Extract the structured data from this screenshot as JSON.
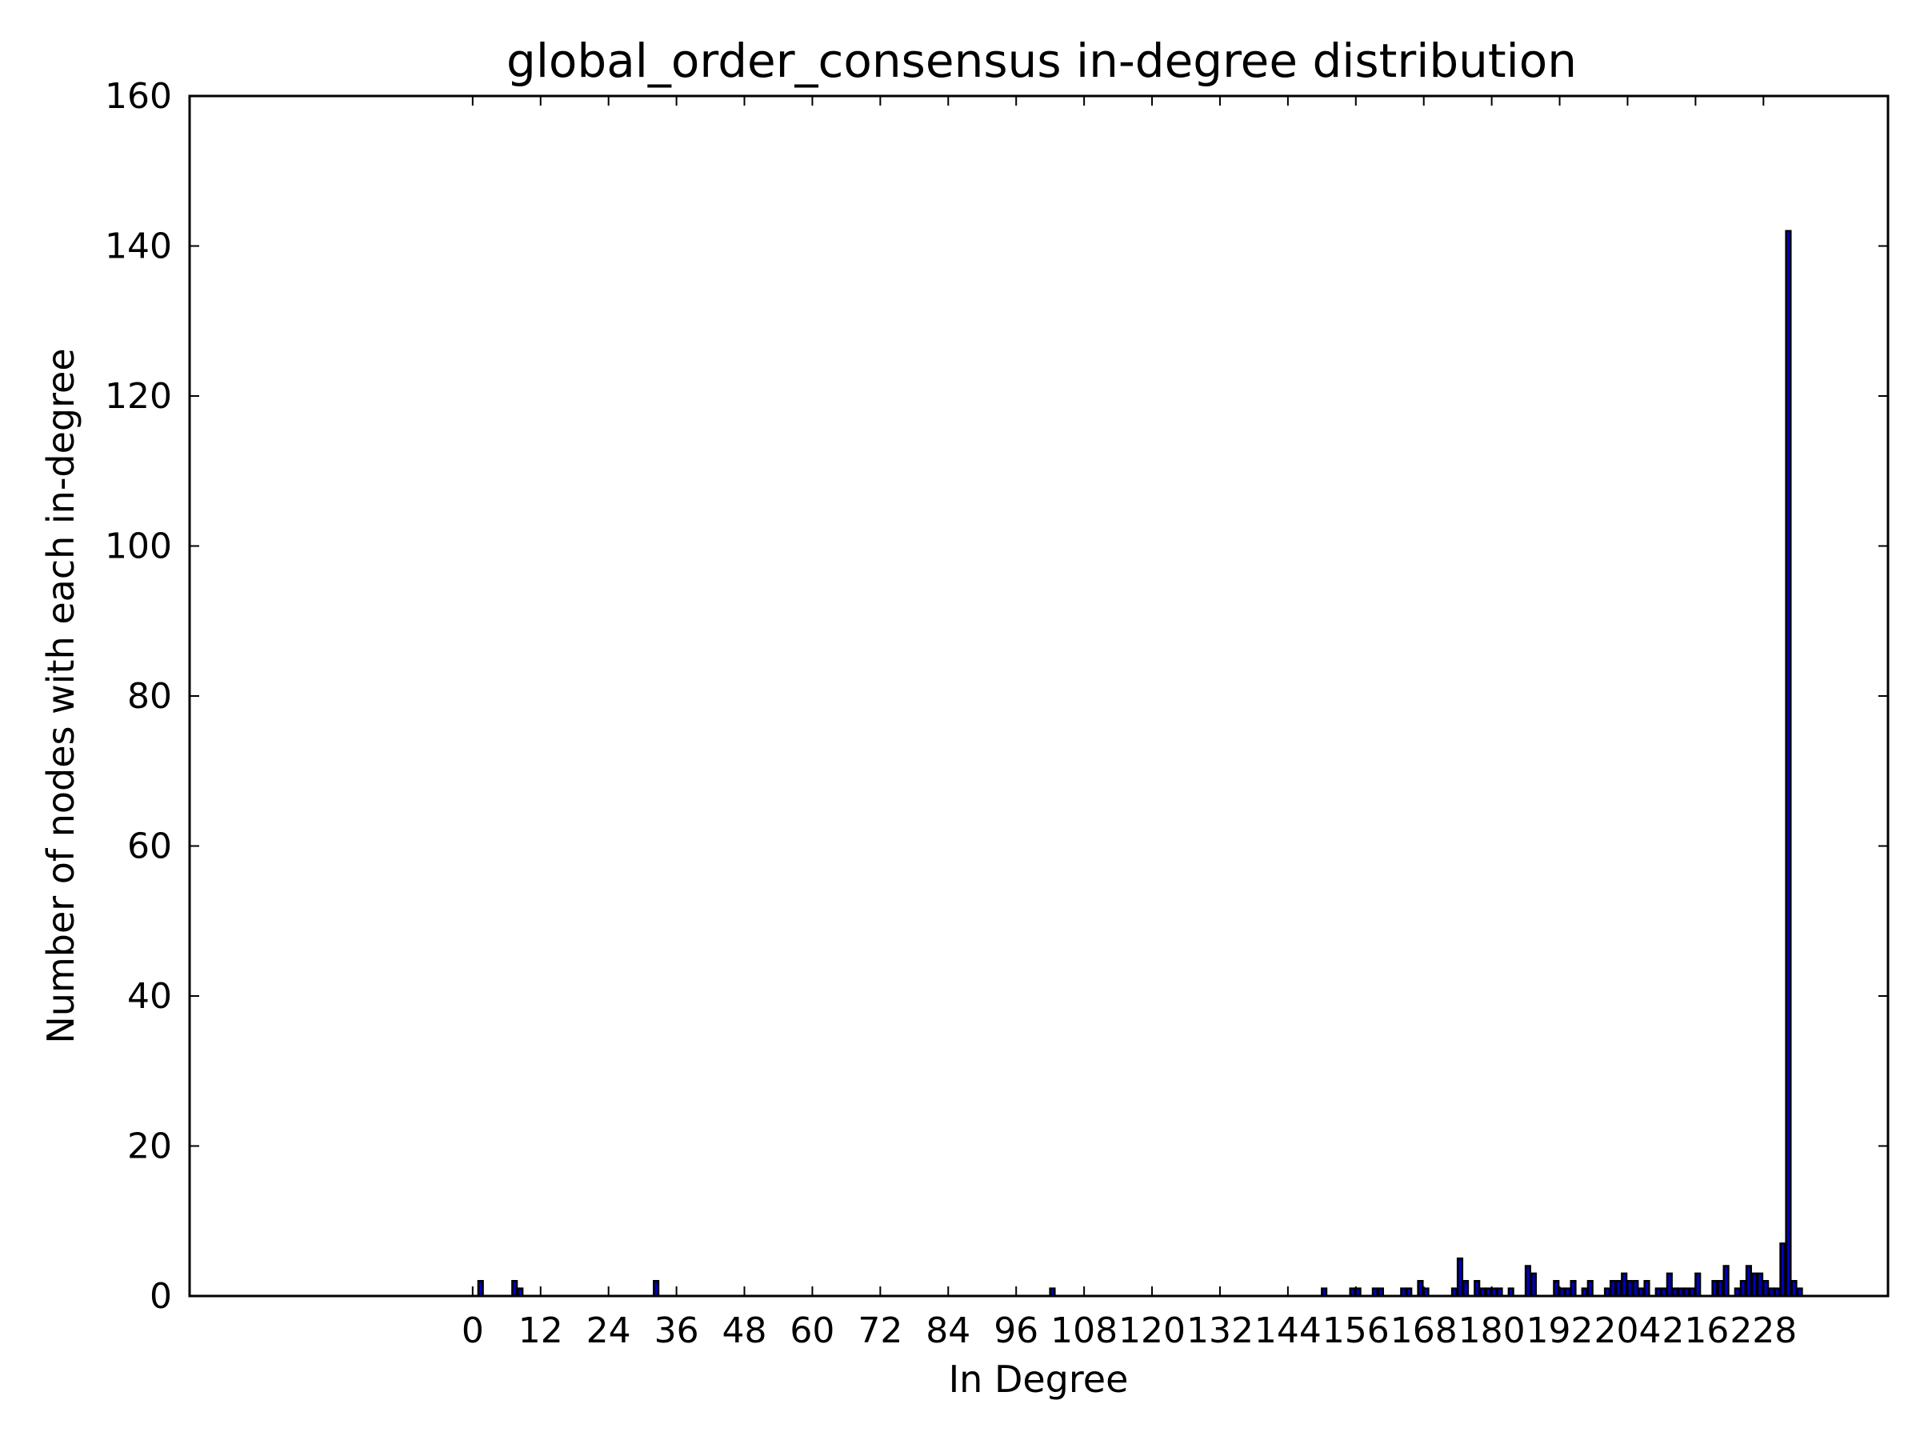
{
  "chart_data": {
    "type": "bar",
    "title": "global_order_consensus in-degree distribution",
    "xlabel": "In Degree",
    "ylabel": "Number of nodes with each in-degree",
    "ylim": [
      0,
      160
    ],
    "xlim": [
      -50,
      250
    ],
    "y_ticks": [
      0,
      20,
      40,
      60,
      80,
      100,
      120,
      140,
      160
    ],
    "x_ticks": [
      0,
      12,
      24,
      36,
      48,
      60,
      72,
      84,
      96,
      108,
      120,
      132,
      144,
      156,
      168,
      180,
      192,
      204,
      216,
      228
    ],
    "bar_width": 0.8,
    "grid": false,
    "colors": {
      "bar": "#0000bf",
      "edge": "#000000"
    },
    "x": [
      1,
      7,
      8,
      32,
      102,
      150,
      155,
      156,
      159,
      160,
      164,
      165,
      167,
      168,
      173,
      174,
      175,
      177,
      178,
      179,
      180,
      181,
      183,
      186,
      187,
      191,
      192,
      193,
      194,
      196,
      197,
      200,
      201,
      202,
      203,
      204,
      205,
      206,
      207,
      209,
      210,
      211,
      212,
      213,
      214,
      215,
      216,
      219,
      220,
      221,
      223,
      224,
      225,
      226,
      227,
      228,
      229,
      230,
      231,
      232,
      233,
      234
    ],
    "values": [
      2,
      2,
      1,
      2,
      1,
      1,
      1,
      1,
      1,
      1,
      1,
      1,
      2,
      1,
      1,
      5,
      2,
      2,
      1,
      1,
      1,
      1,
      1,
      4,
      3,
      2,
      1,
      1,
      2,
      1,
      2,
      1,
      2,
      2,
      3,
      2,
      2,
      1,
      2,
      1,
      1,
      3,
      1,
      1,
      1,
      1,
      3,
      2,
      2,
      4,
      1,
      2,
      4,
      3,
      3,
      2,
      1,
      1,
      7,
      142,
      2,
      1
    ]
  }
}
